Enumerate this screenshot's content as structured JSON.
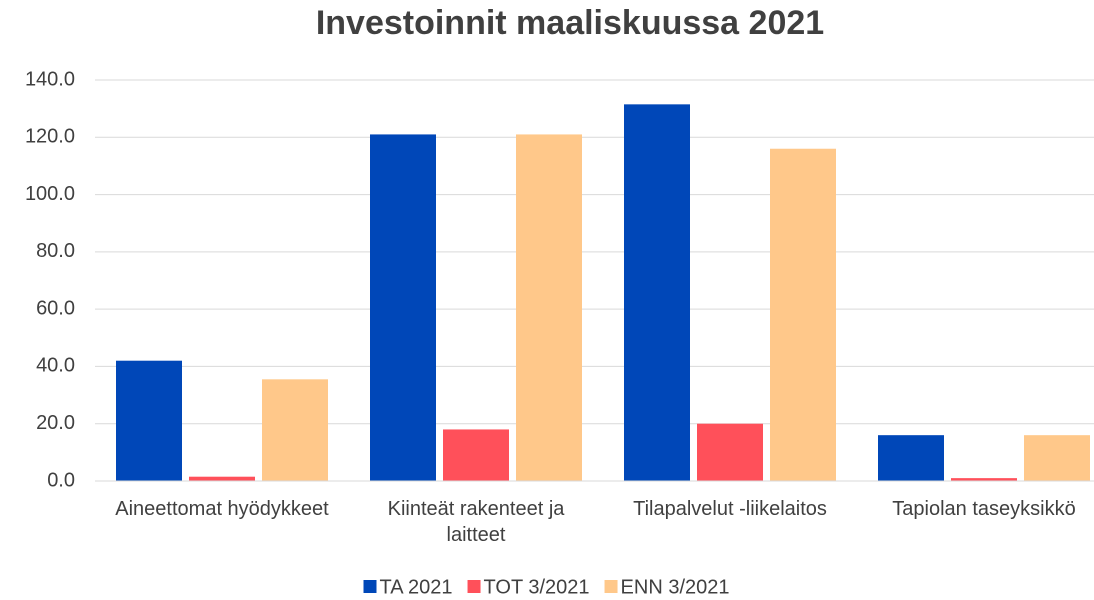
{
  "chart_data": {
    "type": "bar",
    "title": "Investoinnit maaliskuussa 2021",
    "categories": [
      "Aineettomat hyödykkeet",
      "Kiinteät rakenteet ja laitteet",
      "Tilapalvelut -liikelaitos",
      "Tapiolan taseyksikkö"
    ],
    "series": [
      {
        "name": "TA 2021",
        "color": "#0047b8",
        "values": [
          42,
          121,
          131.5,
          16
        ]
      },
      {
        "name": "TOT 3/2021",
        "color": "#ff505a",
        "values": [
          1.5,
          18,
          20,
          1
        ]
      },
      {
        "name": "ENN 3/2021",
        "color": "#ffc88a",
        "values": [
          35.5,
          121,
          116,
          16
        ]
      }
    ],
    "ylim": [
      0,
      140
    ],
    "yticks": [
      {
        "value": 0,
        "label": "0.0"
      },
      {
        "value": 20,
        "label": "20.0"
      },
      {
        "value": 40,
        "label": "40.0"
      },
      {
        "value": 60,
        "label": "60.0"
      },
      {
        "value": 80,
        "label": "80.0"
      },
      {
        "value": 100,
        "label": "100.0"
      },
      {
        "value": 120,
        "label": "120.0"
      },
      {
        "value": 140,
        "label": "140.0"
      }
    ],
    "grid": true,
    "legend": "bottom"
  }
}
